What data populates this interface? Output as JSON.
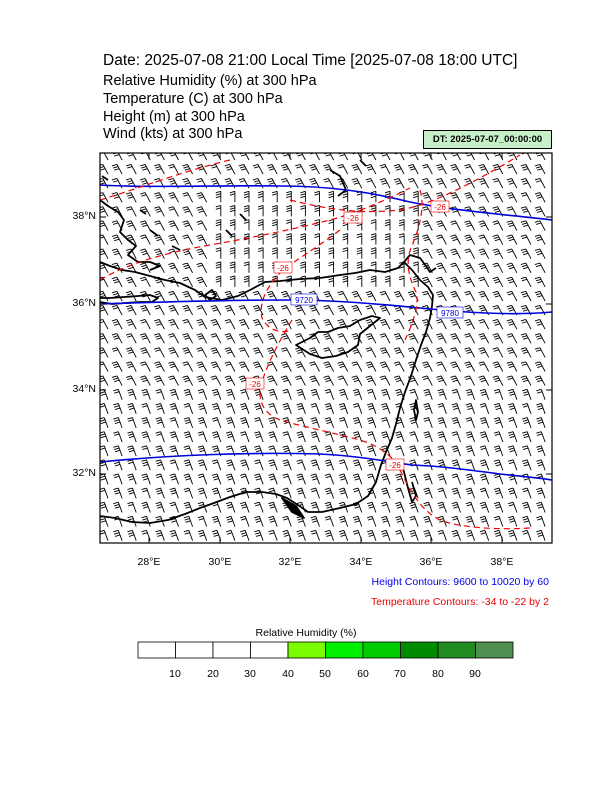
{
  "header": {
    "title": "Date: 2025-07-08  21:00 Local Time [2025-07-08  18:00 UTC]",
    "lines": [
      "Relative Humidity   (%)     at   300 hPa",
      "Temperature   (C)     at   300 hPa",
      "Height   (m)     at   300 hPa",
      "Wind   (kts)     at   300 hPa"
    ],
    "dt_label": "DT: 2025-07-07_00:00:00"
  },
  "map": {
    "lat_labels": [
      "38°N",
      "36°N",
      "34°N",
      "32°N"
    ],
    "lon_labels": [
      "28°E",
      "30°E",
      "32°E",
      "34°E",
      "36°E",
      "38°E"
    ],
    "height_contour_labels": [
      "9720",
      "9780"
    ],
    "temp_contour_labels": [
      "-26",
      "-26",
      "-26",
      "-26",
      "-26"
    ],
    "colors": {
      "height": "#0000dd",
      "temperature": "#ee0000",
      "coast": "#000000",
      "barb": "#000000"
    }
  },
  "notes": {
    "height": "Height Contours: 9600 to 10020 by 60",
    "temperature": "Temperature Contours: -34 to -22 by 2"
  },
  "colorbar": {
    "title": "Relative Humidity  (%)",
    "ticks": [
      "10",
      "20",
      "30",
      "40",
      "50",
      "60",
      "70",
      "80",
      "90"
    ],
    "fills": [
      "#ffffff",
      "#ffffff",
      "#ffffff",
      "#ffffff",
      "#7cfc00",
      "#00ee00",
      "#00cd00",
      "#008b00",
      "#228b22",
      "#4f8f4f"
    ]
  }
}
